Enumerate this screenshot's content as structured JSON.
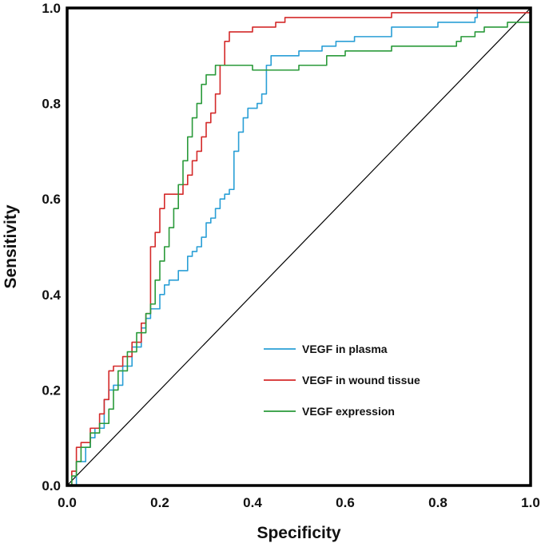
{
  "chart_data": {
    "type": "line",
    "title": "",
    "xlabel": "Specificity",
    "ylabel": "Sensitivity",
    "xlim": [
      0,
      1
    ],
    "ylim": [
      0,
      1
    ],
    "xticks": [
      "0.0",
      "0.2",
      "0.4",
      "0.6",
      "0.8",
      "1.0"
    ],
    "yticks": [
      "0.0",
      "0.2",
      "0.4",
      "0.6",
      "0.8",
      "1.0"
    ],
    "grid": false,
    "legend_position": "lower-right",
    "reference_line": {
      "name": "diagonal",
      "x": [
        0,
        1
      ],
      "y": [
        0,
        1
      ],
      "color": "#000000"
    },
    "series": [
      {
        "name": "VEGF in plasma",
        "color": "#2a9fd6",
        "x": [
          0.0,
          0.02,
          0.04,
          0.05,
          0.06,
          0.08,
          0.08,
          0.09,
          0.1,
          0.12,
          0.14,
          0.16,
          0.17,
          0.18,
          0.2,
          0.21,
          0.22,
          0.24,
          0.26,
          0.27,
          0.28,
          0.29,
          0.3,
          0.31,
          0.32,
          0.33,
          0.34,
          0.35,
          0.36,
          0.37,
          0.38,
          0.39,
          0.41,
          0.42,
          0.43,
          0.44,
          0.5,
          0.55,
          0.58,
          0.62,
          0.7,
          0.72,
          0.8,
          0.88,
          0.885,
          0.89,
          0.95,
          1.0
        ],
        "y": [
          0.0,
          0.05,
          0.08,
          0.1,
          0.12,
          0.16,
          0.18,
          0.2,
          0.21,
          0.25,
          0.29,
          0.33,
          0.35,
          0.37,
          0.4,
          0.42,
          0.43,
          0.45,
          0.48,
          0.49,
          0.5,
          0.52,
          0.55,
          0.56,
          0.58,
          0.6,
          0.61,
          0.62,
          0.7,
          0.74,
          0.77,
          0.79,
          0.8,
          0.82,
          0.88,
          0.9,
          0.91,
          0.92,
          0.93,
          0.94,
          0.96,
          0.96,
          0.97,
          0.98,
          1.0,
          1.0,
          1.0,
          1.0
        ]
      },
      {
        "name": "VEGF in wound tissue",
        "color": "#d42a2a",
        "x": [
          0.0,
          0.01,
          0.02,
          0.03,
          0.05,
          0.07,
          0.08,
          0.09,
          0.1,
          0.12,
          0.14,
          0.16,
          0.17,
          0.18,
          0.19,
          0.2,
          0.21,
          0.22,
          0.24,
          0.25,
          0.26,
          0.27,
          0.28,
          0.29,
          0.3,
          0.31,
          0.32,
          0.33,
          0.34,
          0.35,
          0.36,
          0.38,
          0.4,
          0.45,
          0.47,
          0.6,
          0.7,
          0.8,
          0.9,
          1.0
        ],
        "y": [
          0.0,
          0.03,
          0.08,
          0.09,
          0.12,
          0.15,
          0.18,
          0.24,
          0.25,
          0.27,
          0.3,
          0.34,
          0.36,
          0.5,
          0.53,
          0.58,
          0.61,
          0.61,
          0.61,
          0.63,
          0.65,
          0.68,
          0.7,
          0.73,
          0.76,
          0.78,
          0.82,
          0.88,
          0.93,
          0.95,
          0.95,
          0.95,
          0.96,
          0.97,
          0.98,
          0.98,
          0.99,
          0.99,
          0.99,
          1.0
        ]
      },
      {
        "name": "VEGF expression",
        "color": "#2a9a3a",
        "x": [
          0.0,
          0.01,
          0.02,
          0.03,
          0.05,
          0.07,
          0.09,
          0.1,
          0.11,
          0.13,
          0.15,
          0.17,
          0.18,
          0.19,
          0.2,
          0.21,
          0.22,
          0.23,
          0.24,
          0.25,
          0.26,
          0.27,
          0.28,
          0.29,
          0.3,
          0.32,
          0.34,
          0.36,
          0.4,
          0.44,
          0.5,
          0.56,
          0.6,
          0.7,
          0.8,
          0.84,
          0.85,
          0.88,
          0.9,
          0.95,
          1.0
        ],
        "y": [
          0.0,
          0.02,
          0.05,
          0.08,
          0.11,
          0.13,
          0.16,
          0.2,
          0.24,
          0.28,
          0.32,
          0.36,
          0.38,
          0.43,
          0.47,
          0.5,
          0.54,
          0.58,
          0.63,
          0.68,
          0.73,
          0.77,
          0.8,
          0.84,
          0.86,
          0.88,
          0.88,
          0.88,
          0.87,
          0.87,
          0.88,
          0.9,
          0.91,
          0.92,
          0.92,
          0.93,
          0.94,
          0.95,
          0.96,
          0.97,
          0.98
        ]
      }
    ]
  }
}
